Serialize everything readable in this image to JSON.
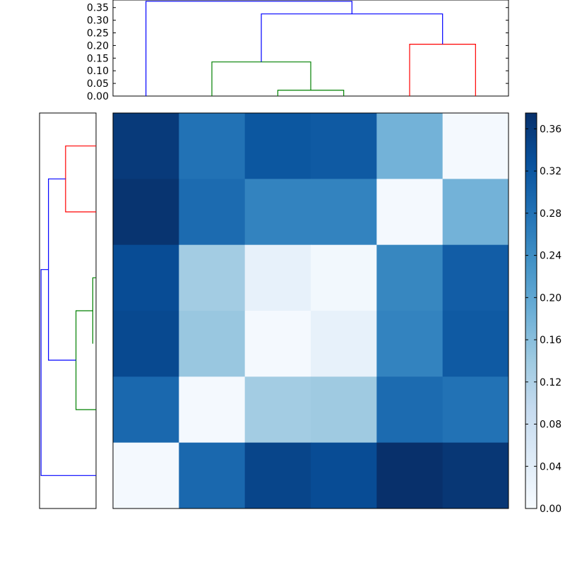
{
  "chart_data": [
    {
      "type": "heatmap",
      "title": "",
      "xlabel": "",
      "ylabel": "",
      "colormap": "Blues",
      "vmin": 0.0,
      "vmax": 0.375,
      "grid": false,
      "row_tick_labels": [],
      "column_tick_labels": [],
      "matrix": [
        [
          0.361,
          0.28,
          0.32,
          0.315,
          0.18,
          0.005
        ],
        [
          0.37,
          0.29,
          0.255,
          0.255,
          0.005,
          0.18
        ],
        [
          0.335,
          0.135,
          0.03,
          0.01,
          0.25,
          0.31
        ],
        [
          0.34,
          0.145,
          0.005,
          0.03,
          0.255,
          0.315
        ],
        [
          0.295,
          0.005,
          0.135,
          0.14,
          0.29,
          0.28
        ],
        [
          0.005,
          0.295,
          0.345,
          0.335,
          0.375,
          0.365
        ]
      ]
    },
    {
      "type": "dendrogram",
      "orientation": "top",
      "ylim": [
        0,
        0.38
      ],
      "y_tick_labels": [
        "0.00",
        "0.05",
        "0.10",
        "0.15",
        "0.20",
        "0.25",
        "0.30",
        "0.35"
      ],
      "links": [
        {
          "left": [
            2.5,
            0.0
          ],
          "top": 0.023,
          "right": [
            3.5,
            0.0
          ],
          "color": "#008000"
        },
        {
          "left": [
            1.5,
            0.0
          ],
          "top": 0.135,
          "right": [
            3.0,
            0.023
          ],
          "color": "#008000"
        },
        {
          "left": [
            4.5,
            0.0
          ],
          "top": 0.205,
          "right": [
            5.5,
            0.0
          ],
          "color": "#ff0000"
        },
        {
          "left": [
            2.25,
            0.135
          ],
          "top": 0.325,
          "right": [
            5.0,
            0.205
          ],
          "color": "#0000ff"
        },
        {
          "left": [
            0.5,
            0.0
          ],
          "top": 0.375,
          "right": [
            3.625,
            0.325
          ],
          "color": "#0000ff"
        }
      ]
    },
    {
      "type": "dendrogram",
      "orientation": "left",
      "ylim": [
        0,
        0.38
      ],
      "links": [
        {
          "left": [
            3.5,
            0.022
          ],
          "top": 0.022,
          "right": [
            2.5,
            0.0
          ],
          "color": "#008000"
        },
        {
          "left": [
            4.5,
            0.0
          ],
          "top": 0.135,
          "right": [
            3.0,
            0.022
          ],
          "color": "#008000"
        },
        {
          "left": [
            1.5,
            0.0
          ],
          "top": 0.205,
          "right": [
            0.5,
            0.0
          ],
          "color": "#ff0000"
        },
        {
          "left": [
            3.75,
            0.135
          ],
          "top": 0.32,
          "right": [
            1.0,
            0.205
          ],
          "color": "#0000ff"
        },
        {
          "left": [
            5.5,
            0.0
          ],
          "top": 0.37,
          "right": [
            2.375,
            0.32
          ],
          "color": "#0000ff"
        }
      ]
    },
    {
      "type": "colorbar",
      "vmin": 0.0,
      "vmax": 0.375,
      "tick_values": [
        0.0,
        0.04,
        0.08,
        0.12,
        0.16,
        0.2,
        0.24,
        0.28,
        0.32,
        0.36
      ],
      "tick_labels": [
        "0.00",
        "0.04",
        "0.08",
        "0.12",
        "0.16",
        "0.20",
        "0.24",
        "0.28",
        "0.32",
        "0.36"
      ]
    }
  ]
}
